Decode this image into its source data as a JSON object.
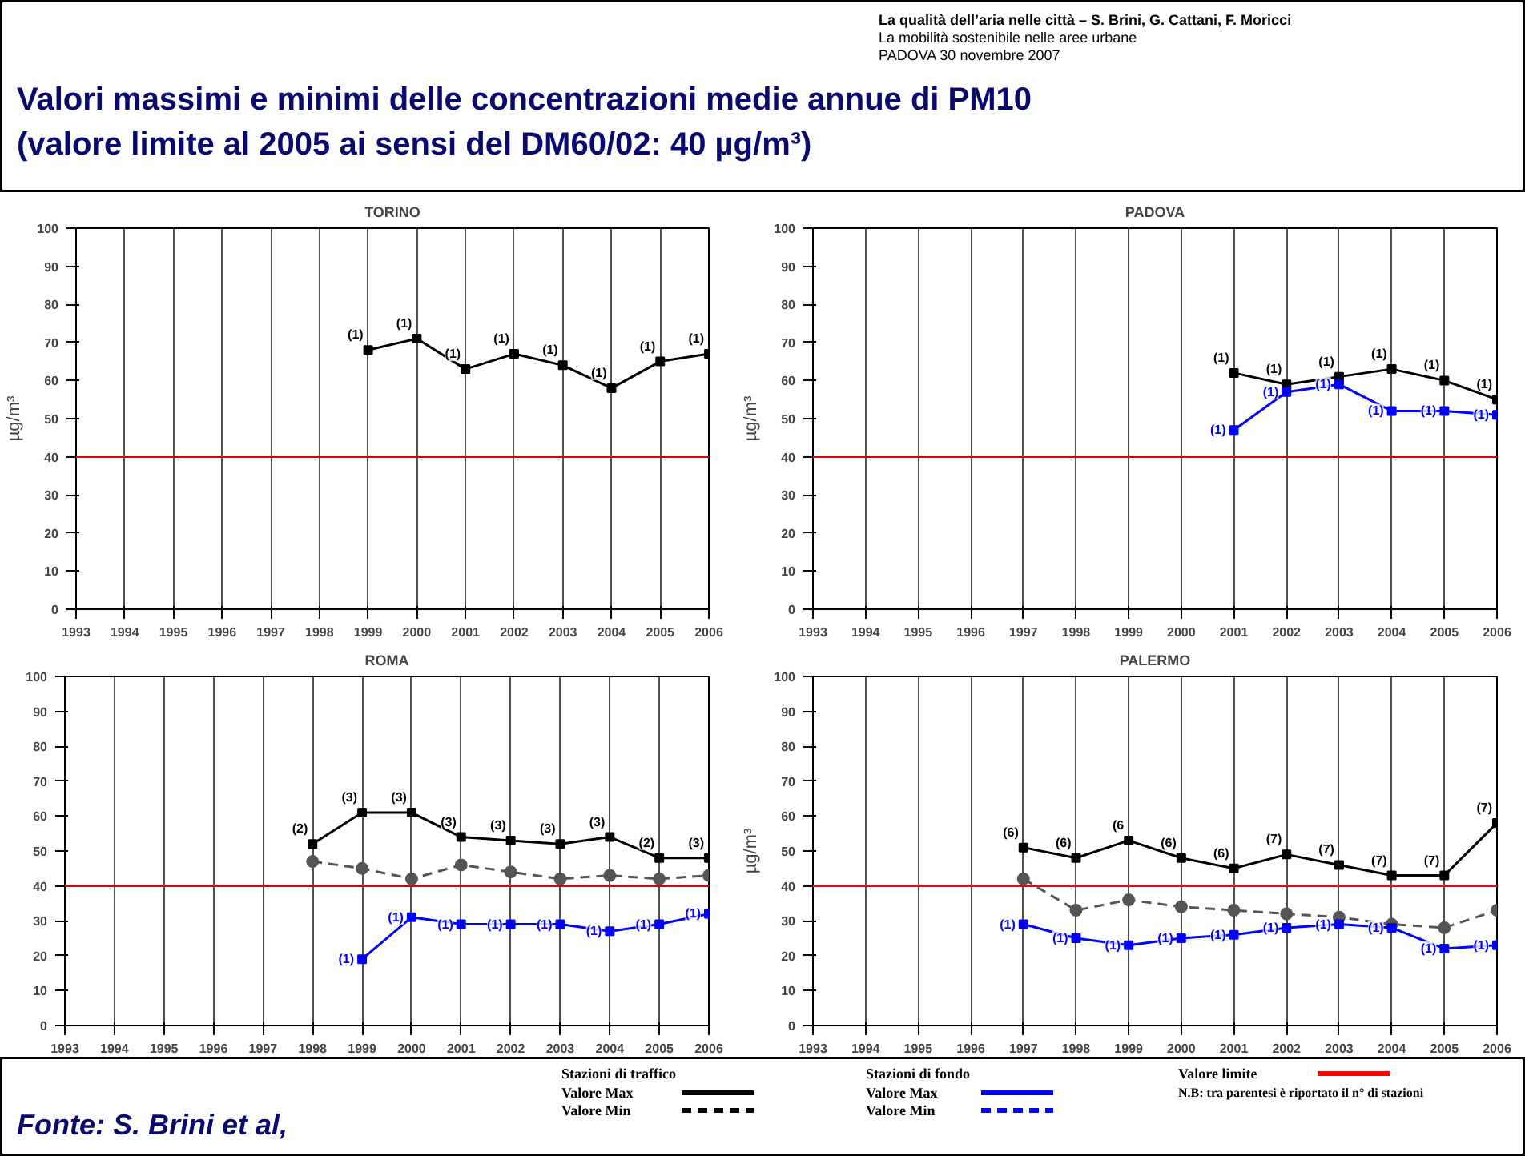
{
  "chart_data": [
    {
      "type": "other",
      "title": "Valori massimi e minimi delle concentrazioni medie annue di PM10\n(valore limite al 2005 ai sensi del DM60/02: 40 µg/m³)",
      "annotations": [
        "La qualità dell’aria nelle città – S. Brini, G. Cattani, F. Moricci",
        "La mobilità sostenibile nelle aree urbane",
        "PADOVA 30 novembre 2007"
      ]
    },
    {
      "type": "line",
      "title": "TORINO",
      "ylabel": "µg/m³",
      "xlim": [
        1993,
        2006
      ],
      "ylim": [
        0,
        100
      ],
      "xticks": [
        1993,
        1994,
        1995,
        1996,
        1997,
        1998,
        1999,
        2000,
        2001,
        2002,
        2003,
        2004,
        2005,
        2006
      ],
      "yticks": [
        0,
        10,
        20,
        30,
        40,
        50,
        60,
        70,
        80,
        90,
        100
      ],
      "grid": "x",
      "marker": "square",
      "ref_lines": [
        {
          "axis": "y",
          "value": 40,
          "color": "#e00000"
        }
      ],
      "series": [
        {
          "color": "#000000",
          "x": [
            1999,
            2000,
            2001,
            2002,
            2003,
            2004,
            2005,
            2006
          ],
          "values": [
            68,
            71,
            63,
            67,
            64,
            58,
            65,
            67
          ]
        }
      ],
      "annotations": [
        {
          "text": "(1)",
          "x": 1999,
          "y": 68
        },
        {
          "text": "(1)",
          "x": 2000,
          "y": 71
        },
        {
          "text": "(1)",
          "x": 2001,
          "y": 63
        },
        {
          "text": "(1)",
          "x": 2002,
          "y": 67
        },
        {
          "text": "(1)",
          "x": 2003,
          "y": 64
        },
        {
          "text": "(1)",
          "x": 2004,
          "y": 58
        },
        {
          "text": "(1)",
          "x": 2005,
          "y": 65
        },
        {
          "text": "(1)",
          "x": 2006,
          "y": 67
        }
      ]
    },
    {
      "type": "line",
      "title": "PADOVA",
      "ylabel": "µg/m³",
      "xlim": [
        1993,
        2006
      ],
      "ylim": [
        0,
        100
      ],
      "xticks": [
        1993,
        1994,
        1995,
        1996,
        1997,
        1998,
        1999,
        2000,
        2001,
        2002,
        2003,
        2004,
        2005,
        2006
      ],
      "yticks": [
        0,
        10,
        20,
        30,
        40,
        50,
        60,
        70,
        80,
        90,
        100
      ],
      "grid": "x",
      "marker": "square",
      "ref_lines": [
        {
          "axis": "y",
          "value": 40,
          "color": "#e00000"
        }
      ],
      "series": [
        {
          "color": "#000000",
          "x": [
            2001,
            2002,
            2003,
            2004,
            2005,
            2006
          ],
          "values": [
            62,
            59,
            61,
            63,
            60,
            55
          ]
        },
        {
          "color": "#0000ff",
          "x": [
            2001,
            2002,
            2003,
            2004,
            2005,
            2006
          ],
          "values": [
            47,
            57,
            59,
            52,
            52,
            51
          ]
        }
      ],
      "annotations": [
        {
          "text": "(1)",
          "x": 2001,
          "y": 62
        },
        {
          "text": "(1)",
          "x": 2002,
          "y": 59
        },
        {
          "text": "(1)",
          "x": 2003,
          "y": 61
        },
        {
          "text": "(1)",
          "x": 2004,
          "y": 63
        },
        {
          "text": "(1)",
          "x": 2005,
          "y": 60
        },
        {
          "text": "(1)",
          "x": 2006,
          "y": 55
        },
        {
          "text": "(1)",
          "x": 2001,
          "y": 47
        },
        {
          "text": "(1)",
          "x": 2002,
          "y": 57
        },
        {
          "text": "(1)",
          "x": 2003,
          "y": 59
        },
        {
          "text": "(1)",
          "x": 2004,
          "y": 52
        },
        {
          "text": "(1)",
          "x": 2005,
          "y": 52
        },
        {
          "text": "(1)",
          "x": 2006,
          "y": 51
        }
      ]
    },
    {
      "type": "line",
      "title": "ROMA",
      "xlim": [
        1993,
        2006
      ],
      "ylim": [
        0,
        100
      ],
      "xticks": [
        1993,
        1994,
        1995,
        1996,
        1997,
        1998,
        1999,
        2000,
        2001,
        2002,
        2003,
        2004,
        2005,
        2006
      ],
      "yticks": [
        0,
        10,
        20,
        30,
        40,
        50,
        60,
        70,
        80,
        90,
        100
      ],
      "grid": "x",
      "marker": "square",
      "ref_lines": [
        {
          "axis": "y",
          "value": 40,
          "color": "#e00000"
        }
      ],
      "series": [
        {
          "color": "#000000",
          "x": [
            1998,
            1999,
            2000,
            2001,
            2002,
            2003,
            2004,
            2005,
            2006
          ],
          "values": [
            52,
            61,
            61,
            54,
            53,
            52,
            54,
            48,
            48
          ]
        },
        {
          "color": "#555555",
          "line_style": "dashed",
          "marker": "circle",
          "x": [
            1998,
            1999,
            2000,
            2001,
            2002,
            2003,
            2004,
            2005,
            2006
          ],
          "values": [
            47,
            45,
            42,
            46,
            44,
            42,
            43,
            42,
            43
          ]
        },
        {
          "color": "#0000ff",
          "x": [
            1999,
            2000,
            2001,
            2002,
            2003,
            2004,
            2005,
            2006
          ],
          "values": [
            19,
            31,
            29,
            29,
            29,
            27,
            29,
            32
          ]
        }
      ],
      "annotations": [
        {
          "text": "(2)",
          "x": 1998,
          "y": 52
        },
        {
          "text": "(3)",
          "x": 1999,
          "y": 61
        },
        {
          "text": "(3)",
          "x": 2000,
          "y": 61
        },
        {
          "text": "(3)",
          "x": 2001,
          "y": 54
        },
        {
          "text": "(3)",
          "x": 2002,
          "y": 53
        },
        {
          "text": "(3)",
          "x": 2003,
          "y": 52
        },
        {
          "text": "(3)",
          "x": 2004,
          "y": 54
        },
        {
          "text": "(2)",
          "x": 2005,
          "y": 48
        },
        {
          "text": "(3)",
          "x": 2006,
          "y": 48
        },
        {
          "text": "(1)",
          "x": 1999,
          "y": 19
        },
        {
          "text": "(1)",
          "x": 2000,
          "y": 31
        },
        {
          "text": "(1)",
          "x": 2001,
          "y": 29
        },
        {
          "text": "(1)",
          "x": 2002,
          "y": 29
        },
        {
          "text": "(1)",
          "x": 2003,
          "y": 29
        },
        {
          "text": "(1)",
          "x": 2004,
          "y": 27
        },
        {
          "text": "(1)",
          "x": 2005,
          "y": 29
        },
        {
          "text": "(1)",
          "x": 2006,
          "y": 32
        }
      ]
    },
    {
      "type": "line",
      "title": "PALERMO",
      "ylabel": "µg/m³",
      "xlim": [
        1993,
        2006
      ],
      "ylim": [
        0,
        100
      ],
      "xticks": [
        1993,
        1994,
        1995,
        1996,
        1997,
        1998,
        1999,
        2000,
        2001,
        2002,
        2003,
        2004,
        2005,
        2006
      ],
      "yticks": [
        0,
        10,
        20,
        30,
        40,
        50,
        60,
        70,
        80,
        90,
        100
      ],
      "grid": "x",
      "marker": "square",
      "ref_lines": [
        {
          "axis": "y",
          "value": 40,
          "color": "#ff0000"
        }
      ],
      "series": [
        {
          "color": "#000000",
          "x": [
            1997,
            1998,
            1999,
            2000,
            2001,
            2002,
            2003,
            2004,
            2005,
            2006
          ],
          "values": [
            51,
            48,
            53,
            48,
            45,
            49,
            46,
            43,
            43,
            58
          ]
        },
        {
          "color": "#555555",
          "line_style": "dashed",
          "marker": "circle",
          "x": [
            1997,
            1998,
            1999,
            2000,
            2001,
            2002,
            2003,
            2004,
            2005,
            2006
          ],
          "values": [
            42,
            33,
            36,
            34,
            33,
            32,
            31,
            29,
            28,
            33
          ]
        },
        {
          "color": "#0000ff",
          "x": [
            1997,
            1998,
            1999,
            2000,
            2001,
            2002,
            2003,
            2004,
            2005,
            2006
          ],
          "values": [
            29,
            25,
            23,
            25,
            26,
            28,
            29,
            28,
            22,
            23
          ]
        }
      ],
      "annotations": [
        {
          "text": "(6)",
          "x": 1997,
          "y": 51
        },
        {
          "text": "(6)",
          "x": 1998,
          "y": 48
        },
        {
          "text": "(6",
          "x": 1999,
          "y": 53
        },
        {
          "text": "(6)",
          "x": 2000,
          "y": 48
        },
        {
          "text": "(6)",
          "x": 2001,
          "y": 45
        },
        {
          "text": "(7)",
          "x": 2002,
          "y": 49
        },
        {
          "text": "(7)",
          "x": 2003,
          "y": 46
        },
        {
          "text": "(7)",
          "x": 2004,
          "y": 43
        },
        {
          "text": "(7)",
          "x": 2005,
          "y": 43
        },
        {
          "text": "(7)",
          "x": 2006,
          "y": 58
        },
        {
          "text": "(1)",
          "x": 1997,
          "y": 29
        },
        {
          "text": "(1)",
          "x": 1998,
          "y": 25
        },
        {
          "text": "(1)",
          "x": 1999,
          "y": 23
        },
        {
          "text": "(1)",
          "x": 2000,
          "y": 25
        },
        {
          "text": "(1)",
          "x": 2001,
          "y": 26
        },
        {
          "text": "(1)",
          "x": 2002,
          "y": 28
        },
        {
          "text": "(1)",
          "x": 2003,
          "y": 29
        },
        {
          "text": "(1)",
          "x": 2004,
          "y": 28
        },
        {
          "text": "(1)",
          "x": 2005,
          "y": 22
        },
        {
          "text": "(1)",
          "x": 2006,
          "y": 23
        }
      ]
    },
    {
      "type": "other",
      "annotations": [
        "Fonte: S. Brini et al,",
        "Stazioni di traffico",
        "Valore Max",
        "Valore Min",
        "Stazioni di fondo",
        "Valore Max",
        "Valore Min",
        "Valore  limite",
        "N.B: tra parentesi è riportato il n° di stazioni"
      ]
    }
  ]
}
